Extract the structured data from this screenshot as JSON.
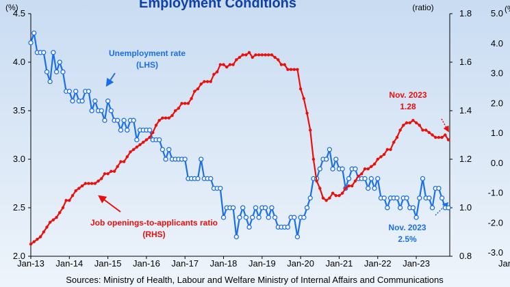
{
  "chart_data": [
    {
      "type": "line",
      "title": "Employment Conditions",
      "y_unit": "(%)",
      "y2_unit": "(ratio)",
      "source": "Sources: Ministry of Health, Labour and Welfare Ministry of Internal Affairs and Communications",
      "categories": [
        "Jan-13",
        null,
        null,
        null,
        null,
        null,
        null,
        null,
        null,
        null,
        null,
        null,
        "Jan-14",
        null,
        null,
        null,
        null,
        null,
        null,
        null,
        null,
        null,
        null,
        null,
        "Jan-15",
        null,
        null,
        null,
        null,
        null,
        null,
        null,
        null,
        null,
        null,
        null,
        "Jan-16",
        null,
        null,
        null,
        null,
        null,
        null,
        null,
        null,
        null,
        null,
        null,
        "Jan-17",
        null,
        null,
        null,
        null,
        null,
        null,
        null,
        null,
        null,
        null,
        null,
        "Jan-18",
        null,
        null,
        null,
        null,
        null,
        null,
        null,
        null,
        null,
        null,
        null,
        "Jan-19",
        null,
        null,
        null,
        null,
        null,
        null,
        null,
        null,
        null,
        null,
        null,
        "Jan-20",
        null,
        null,
        null,
        null,
        null,
        null,
        null,
        null,
        null,
        null,
        null,
        "Jan-21",
        null,
        null,
        null,
        null,
        null,
        null,
        null,
        null,
        null,
        null,
        null,
        "Jan-22",
        null,
        null,
        null,
        null,
        null,
        null,
        null,
        null,
        null,
        null,
        null,
        "Jan-23",
        null,
        null,
        null,
        null,
        null,
        null,
        null,
        null,
        null,
        null
      ],
      "series": [
        {
          "name": "Unemployment rate",
          "color": "#1a6fe8",
          "axis": "y",
          "values": [
            4.2,
            4.3,
            4.1,
            4.1,
            4.1,
            3.9,
            3.8,
            4.1,
            3.9,
            4.0,
            3.9,
            3.7,
            3.7,
            3.6,
            3.7,
            3.6,
            3.6,
            3.7,
            3.7,
            3.5,
            3.6,
            3.5,
            3.5,
            3.4,
            3.6,
            3.5,
            3.4,
            3.4,
            3.3,
            3.4,
            3.3,
            3.4,
            3.4,
            3.2,
            3.3,
            3.3,
            3.3,
            3.3,
            3.2,
            3.2,
            3.2,
            3.1,
            3.0,
            3.1,
            3.0,
            3.0,
            3.0,
            3.0,
            3.0,
            2.8,
            2.8,
            2.8,
            2.8,
            3.0,
            2.8,
            2.8,
            2.8,
            2.7,
            2.7,
            2.7,
            2.4,
            2.5,
            2.5,
            2.5,
            2.2,
            2.4,
            2.5,
            2.4,
            2.3,
            2.4,
            2.5,
            2.4,
            2.5,
            2.5,
            2.4,
            2.5,
            2.4,
            2.3,
            2.3,
            2.3,
            2.3,
            2.4,
            2.4,
            2.2,
            2.4,
            2.4,
            2.5,
            2.6,
            2.8,
            2.8,
            2.9,
            3.0,
            3.0,
            3.1,
            2.9,
            3.0,
            2.9,
            2.9,
            2.7,
            2.8,
            2.9,
            2.9,
            2.8,
            2.8,
            2.8,
            2.7,
            2.8,
            2.7,
            2.8,
            2.6,
            2.6,
            2.5,
            2.6,
            2.6,
            2.6,
            2.5,
            2.6,
            2.6,
            2.5,
            2.5,
            2.4,
            2.6,
            2.8,
            2.6,
            2.6,
            2.5,
            2.7,
            2.7,
            2.6,
            2.5,
            2.5
          ]
        },
        {
          "name": "Job openings-to-applicants ratio",
          "color": "#e8100c",
          "axis": "y2",
          "values": [
            0.85,
            0.86,
            0.87,
            0.88,
            0.9,
            0.92,
            0.94,
            0.95,
            0.96,
            0.98,
            1.0,
            1.03,
            1.03,
            1.05,
            1.07,
            1.08,
            1.09,
            1.1,
            1.1,
            1.1,
            1.1,
            1.11,
            1.12,
            1.14,
            1.14,
            1.15,
            1.15,
            1.17,
            1.19,
            1.19,
            1.21,
            1.23,
            1.24,
            1.25,
            1.26,
            1.27,
            1.28,
            1.29,
            1.31,
            1.34,
            1.36,
            1.37,
            1.37,
            1.37,
            1.38,
            1.4,
            1.41,
            1.43,
            1.43,
            1.43,
            1.45,
            1.48,
            1.49,
            1.51,
            1.52,
            1.52,
            1.52,
            1.55,
            1.56,
            1.59,
            1.59,
            1.58,
            1.59,
            1.59,
            1.61,
            1.62,
            1.63,
            1.63,
            1.64,
            1.62,
            1.63,
            1.63,
            1.63,
            1.63,
            1.63,
            1.63,
            1.62,
            1.61,
            1.59,
            1.59,
            1.57,
            1.57,
            1.57,
            1.57,
            1.49,
            1.45,
            1.39,
            1.32,
            1.2,
            1.11,
            1.08,
            1.04,
            1.03,
            1.04,
            1.06,
            1.05,
            1.05,
            1.06,
            1.08,
            1.09,
            1.09,
            1.11,
            1.13,
            1.14,
            1.16,
            1.16,
            1.17,
            1.18,
            1.2,
            1.21,
            1.22,
            1.24,
            1.24,
            1.27,
            1.29,
            1.32,
            1.34,
            1.35,
            1.35,
            1.36,
            1.35,
            1.34,
            1.32,
            1.32,
            1.31,
            1.3,
            1.29,
            1.29,
            1.29,
            1.3,
            1.28
          ]
        }
      ],
      "ylim": [
        2.0,
        4.5
      ],
      "yticks": [
        {
          "value": 2,
          "label": "2.0"
        },
        2.5,
        {
          "value": 3,
          "label": "3.0"
        },
        3.5,
        {
          "value": 4,
          "label": "4.0"
        },
        4.5
      ],
      "y2lim": [
        0.8,
        1.8
      ],
      "y2ticks": [
        0.8,
        {
          "value": 1,
          "label": "1.0"
        },
        1.2,
        1.4,
        1.6,
        1.8
      ],
      "annotations": [
        {
          "text": "Unemployment rate"
        },
        {
          "text": "(LHS)"
        },
        {
          "text": "Job openings-to-applicants ratio"
        },
        {
          "text": "(RHS)"
        },
        {
          "text": "Nov. 2023"
        },
        {
          "text": "1.28"
        },
        {
          "text": "Nov. 2023"
        },
        {
          "text": "2.5%"
        }
      ]
    },
    {
      "type": "line",
      "y_unit": "(%",
      "categories": [
        "Jan"
      ],
      "ylim": [
        -3,
        5
      ],
      "yticks": [
        {
          "value": 5,
          "label": "5.0"
        },
        {
          "value": 4,
          "label": "4.0"
        },
        {
          "value": 3,
          "label": "3.0"
        },
        {
          "value": 2,
          "label": "2.0"
        },
        {
          "value": 1,
          "label": "1.0"
        },
        {
          "value": 0,
          "label": "0.0"
        },
        {
          "value": -1,
          "label": "-1.0"
        },
        {
          "value": -2,
          "label": "-2.0"
        },
        {
          "value": -3,
          "label": "-3.0"
        }
      ]
    }
  ]
}
